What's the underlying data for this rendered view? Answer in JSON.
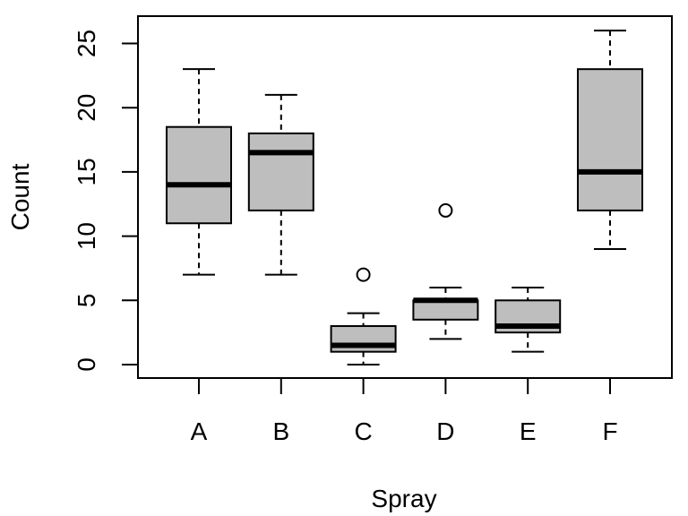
{
  "chart_data": {
    "type": "boxplot",
    "title": "",
    "xlabel": "Spray",
    "ylabel": "Count",
    "categories": [
      "A",
      "B",
      "C",
      "D",
      "E",
      "F"
    ],
    "y_ticks": [
      0,
      5,
      10,
      15,
      20,
      25
    ],
    "ylim": [
      -1,
      27
    ],
    "grid": false,
    "legend": "none",
    "box_fill": "#bebebe",
    "boxes": [
      {
        "label": "A",
        "whisker_low": 7,
        "q1": 11,
        "median": 14,
        "q3": 18.5,
        "whisker_high": 23,
        "outliers": []
      },
      {
        "label": "B",
        "whisker_low": 7,
        "q1": 12,
        "median": 16.5,
        "q3": 18,
        "whisker_high": 21,
        "outliers": []
      },
      {
        "label": "C",
        "whisker_low": 0,
        "q1": 1,
        "median": 1.5,
        "q3": 3,
        "whisker_high": 4,
        "outliers": [
          7
        ]
      },
      {
        "label": "D",
        "whisker_low": 2,
        "q1": 3.5,
        "median": 5,
        "q3": 5,
        "whisker_high": 6,
        "outliers": [
          12
        ]
      },
      {
        "label": "E",
        "whisker_low": 1,
        "q1": 2.5,
        "median": 3,
        "q3": 5,
        "whisker_high": 6,
        "outliers": []
      },
      {
        "label": "F",
        "whisker_low": 9,
        "q1": 12,
        "median": 15,
        "q3": 23,
        "whisker_high": 26,
        "outliers": []
      }
    ]
  }
}
